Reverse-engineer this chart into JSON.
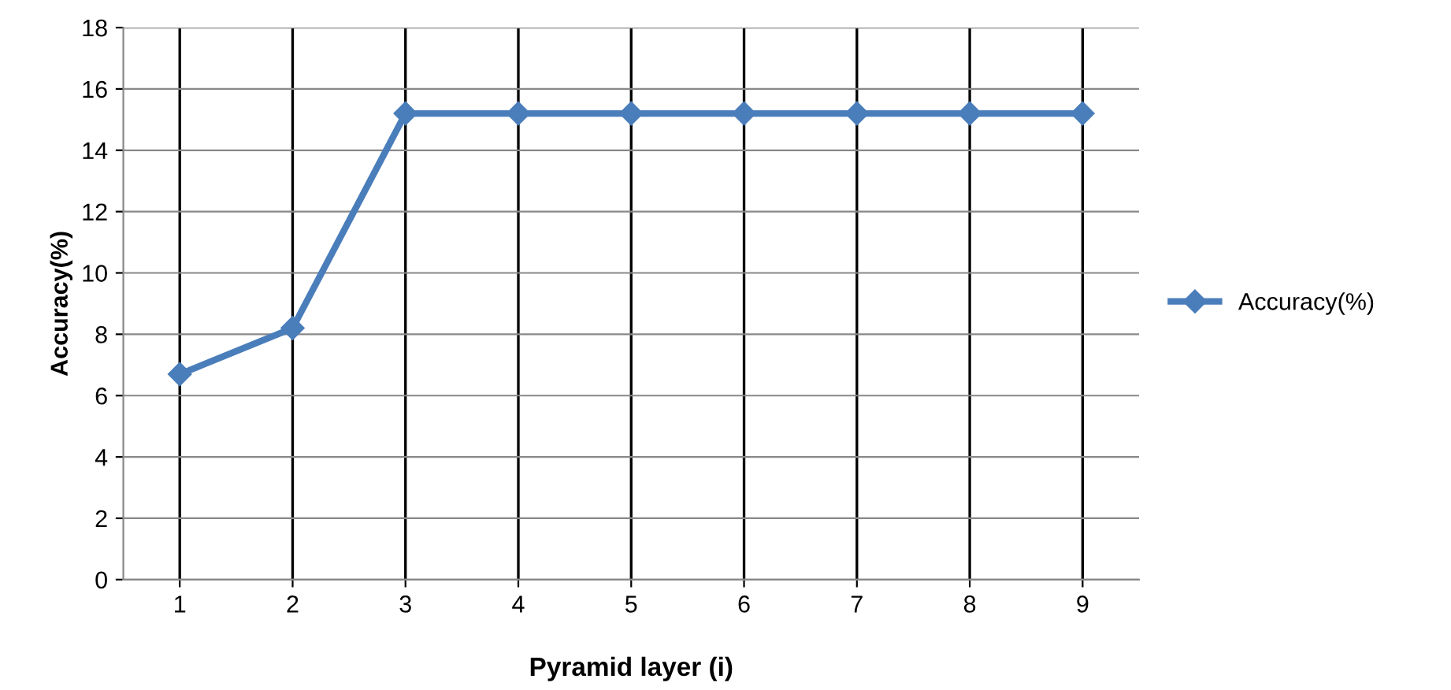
{
  "chart_data": {
    "type": "line",
    "xlabel": "Pyramid layer (i)",
    "ylabel": "Accuracy(%)",
    "categories": [
      "1",
      "2",
      "3",
      "4",
      "5",
      "6",
      "7",
      "8",
      "9"
    ],
    "series": [
      {
        "name": "Accuracy(%)",
        "color": "#4a7ebb",
        "marker": "diamond",
        "line_style": "solid",
        "values": [
          6.7,
          8.2,
          15.2,
          15.2,
          15.2,
          15.2,
          15.2,
          15.2,
          15.2
        ]
      }
    ],
    "ylim": [
      0,
      18
    ],
    "yticks": [
      0,
      2,
      4,
      6,
      8,
      10,
      12,
      14,
      16,
      18
    ],
    "grid": true,
    "legend": "right"
  }
}
